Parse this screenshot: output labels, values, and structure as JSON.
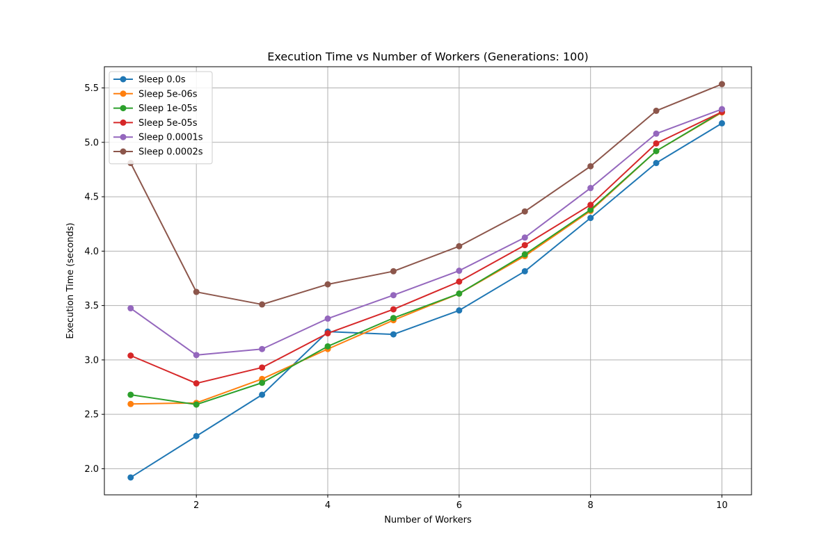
{
  "chart_data": {
    "type": "line",
    "title": "Execution Time vs Number of Workers (Generations: 100)",
    "xlabel": "Number of Workers",
    "ylabel": "Execution Time (seconds)",
    "xlim": [
      0.6,
      10.45
    ],
    "ylim": [
      1.76,
      5.695
    ],
    "xticks": [
      2,
      4,
      6,
      8,
      10
    ],
    "yticks": [
      2.0,
      2.5,
      3.0,
      3.5,
      4.0,
      4.5,
      5.0,
      5.5
    ],
    "grid": true,
    "legend_position": "top-left",
    "x": [
      1,
      2,
      3,
      4,
      5,
      6,
      7,
      8,
      9,
      10
    ],
    "series": [
      {
        "name": "Sleep 0.0s",
        "color": "#1f77b4",
        "values": [
          1.92,
          2.3,
          2.68,
          3.26,
          3.235,
          3.455,
          3.815,
          4.305,
          4.81,
          5.175
        ]
      },
      {
        "name": "Sleep 5e-06s",
        "color": "#ff7f0e",
        "values": [
          2.595,
          2.605,
          2.825,
          3.1,
          3.365,
          3.61,
          3.955,
          4.37,
          4.92,
          5.275
        ]
      },
      {
        "name": "Sleep 1e-05s",
        "color": "#2ca02c",
        "values": [
          2.68,
          2.59,
          2.79,
          3.125,
          3.385,
          3.61,
          3.97,
          4.38,
          4.92,
          5.28
        ]
      },
      {
        "name": "Sleep 5e-05s",
        "color": "#d62728",
        "values": [
          3.04,
          2.785,
          2.93,
          3.245,
          3.465,
          3.72,
          4.055,
          4.425,
          4.99,
          5.28
        ]
      },
      {
        "name": "Sleep 0.0001s",
        "color": "#9467bd",
        "values": [
          3.475,
          3.045,
          3.1,
          3.38,
          3.595,
          3.82,
          4.125,
          4.58,
          5.08,
          5.305
        ]
      },
      {
        "name": "Sleep 0.0002s",
        "color": "#8c564b",
        "values": [
          4.81,
          3.625,
          3.51,
          3.695,
          3.815,
          4.045,
          4.365,
          4.78,
          5.29,
          5.535
        ]
      }
    ]
  }
}
